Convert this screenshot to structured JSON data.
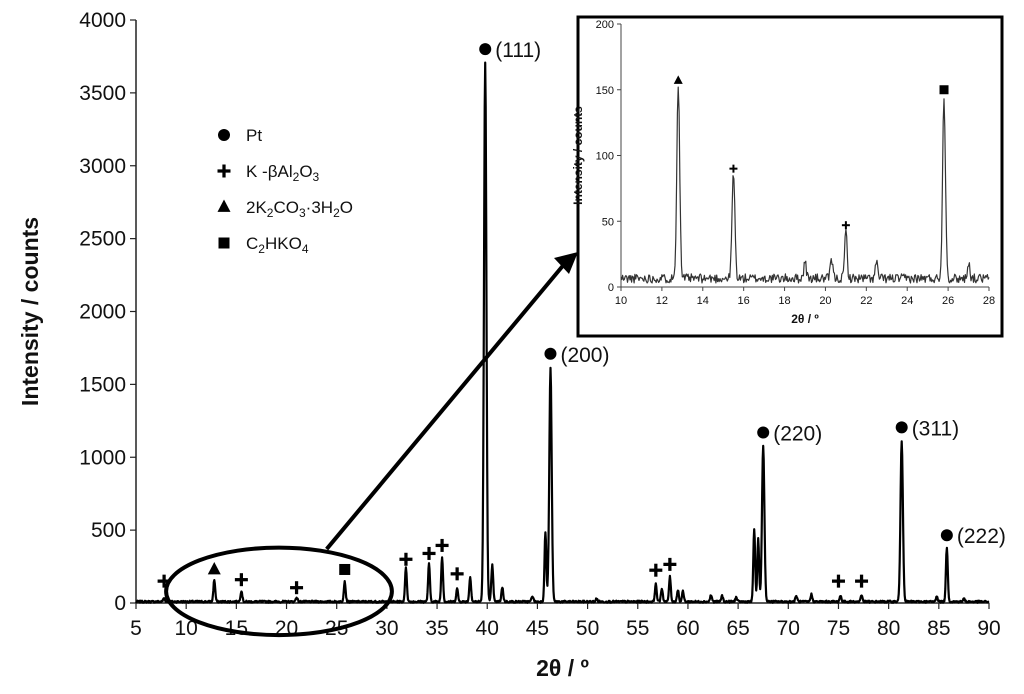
{
  "chart_data": [
    {
      "type": "line",
      "xlabel": "2θ / º",
      "ylabel": "Intensity / counts",
      "xlim": [
        5,
        90
      ],
      "ylim": [
        0,
        4000
      ],
      "xticks": [
        5,
        10,
        15,
        20,
        25,
        30,
        35,
        40,
        45,
        50,
        55,
        60,
        65,
        70,
        75,
        80,
        85,
        90
      ],
      "yticks": [
        0,
        500,
        1000,
        1500,
        2000,
        2500,
        3000,
        3500,
        4000
      ],
      "grid": false,
      "legend_position": "upper-left",
      "legend": [
        {
          "marker": "circle",
          "label": "Pt"
        },
        {
          "marker": "plus",
          "label": "K -βAl",
          "sub": "2",
          "label2": "O",
          "sub2": "3"
        },
        {
          "marker": "triangle",
          "label": "2K",
          "sub": "2",
          "label2": "CO",
          "sub2": "3",
          "label3": "·3H",
          "sub3": "2",
          "label4": "O"
        },
        {
          "marker": "square",
          "label": "C",
          "sub": "2",
          "label2": "HKO",
          "sub2": "4"
        }
      ],
      "peaks": [
        {
          "x": 7.8,
          "y": 25
        },
        {
          "x": 12.8,
          "y": 150
        },
        {
          "x": 15.5,
          "y": 75
        },
        {
          "x": 21.0,
          "y": 30
        },
        {
          "x": 25.8,
          "y": 140
        },
        {
          "x": 31.9,
          "y": 230
        },
        {
          "x": 34.2,
          "y": 260
        },
        {
          "x": 35.5,
          "y": 310
        },
        {
          "x": 37.0,
          "y": 90
        },
        {
          "x": 38.3,
          "y": 170
        },
        {
          "x": 39.8,
          "y": 3700
        },
        {
          "x": 40.5,
          "y": 250
        },
        {
          "x": 41.5,
          "y": 100
        },
        {
          "x": 44.5,
          "y": 40
        },
        {
          "x": 45.8,
          "y": 480
        },
        {
          "x": 46.3,
          "y": 1600
        },
        {
          "x": 50.9,
          "y": 20
        },
        {
          "x": 56.8,
          "y": 120
        },
        {
          "x": 57.4,
          "y": 90
        },
        {
          "x": 58.2,
          "y": 170
        },
        {
          "x": 59.0,
          "y": 80
        },
        {
          "x": 59.5,
          "y": 70
        },
        {
          "x": 62.3,
          "y": 45
        },
        {
          "x": 63.4,
          "y": 40
        },
        {
          "x": 64.8,
          "y": 30
        },
        {
          "x": 66.6,
          "y": 500
        },
        {
          "x": 67.0,
          "y": 430
        },
        {
          "x": 67.5,
          "y": 1070
        },
        {
          "x": 70.8,
          "y": 40
        },
        {
          "x": 72.3,
          "y": 50
        },
        {
          "x": 75.2,
          "y": 40
        },
        {
          "x": 77.3,
          "y": 45
        },
        {
          "x": 81.3,
          "y": 1100
        },
        {
          "x": 84.8,
          "y": 40
        },
        {
          "x": 85.8,
          "y": 370
        },
        {
          "x": 87.5,
          "y": 20
        }
      ],
      "annotations": [
        {
          "marker": "circle",
          "x": 39.8,
          "y": 3800,
          "text": "(111)"
        },
        {
          "marker": "circle",
          "x": 46.3,
          "y": 1710,
          "text": "(200)"
        },
        {
          "marker": "circle",
          "x": 67.5,
          "y": 1170,
          "text": "(220)"
        },
        {
          "marker": "circle",
          "x": 81.3,
          "y": 1205,
          "text": "(311)"
        },
        {
          "marker": "circle",
          "x": 85.8,
          "y": 465,
          "text": "(222)"
        },
        {
          "marker": "plus",
          "x": 7.8,
          "y": 150
        },
        {
          "marker": "triangle",
          "x": 12.8,
          "y": 230
        },
        {
          "marker": "plus",
          "x": 15.5,
          "y": 160
        },
        {
          "marker": "plus",
          "x": 21.0,
          "y": 105
        },
        {
          "marker": "square",
          "x": 25.8,
          "y": 230
        },
        {
          "marker": "plus",
          "x": 31.9,
          "y": 300
        },
        {
          "marker": "plus",
          "x": 34.2,
          "y": 340
        },
        {
          "marker": "plus",
          "x": 35.5,
          "y": 395
        },
        {
          "marker": "plus",
          "x": 37.0,
          "y": 200
        },
        {
          "marker": "plus",
          "x": 56.8,
          "y": 225
        },
        {
          "marker": "plus",
          "x": 58.2,
          "y": 265
        },
        {
          "marker": "plus",
          "x": 75.0,
          "y": 150
        },
        {
          "marker": "plus",
          "x": 77.3,
          "y": 150
        }
      ],
      "callout": {
        "shape": "ellipse",
        "x_range": [
          8,
          30.5
        ],
        "y_range": [
          -220,
          380
        ],
        "arrow_from": {
          "x": 24,
          "y": 370
        }
      }
    },
    {
      "type": "line",
      "xlabel": "2θ / º",
      "ylabel": "Intensity / counts",
      "xlim": [
        10,
        28
      ],
      "ylim": [
        0,
        200
      ],
      "xticks": [
        10,
        12,
        14,
        16,
        18,
        20,
        22,
        24,
        26,
        28
      ],
      "yticks": [
        0,
        50,
        100,
        150,
        200
      ],
      "grid": false,
      "peaks": [
        {
          "x": 12.8,
          "y": 148
        },
        {
          "x": 15.5,
          "y": 80
        },
        {
          "x": 19.0,
          "y": 13
        },
        {
          "x": 20.3,
          "y": 14
        },
        {
          "x": 21.0,
          "y": 37
        },
        {
          "x": 22.5,
          "y": 12
        },
        {
          "x": 25.8,
          "y": 138
        },
        {
          "x": 27.0,
          "y": 12
        }
      ],
      "annotations": [
        {
          "marker": "triangle",
          "x": 12.8,
          "y": 157
        },
        {
          "marker": "plus",
          "x": 15.5,
          "y": 90
        },
        {
          "marker": "plus",
          "x": 21.0,
          "y": 47
        },
        {
          "marker": "square",
          "x": 25.8,
          "y": 150
        }
      ]
    }
  ]
}
